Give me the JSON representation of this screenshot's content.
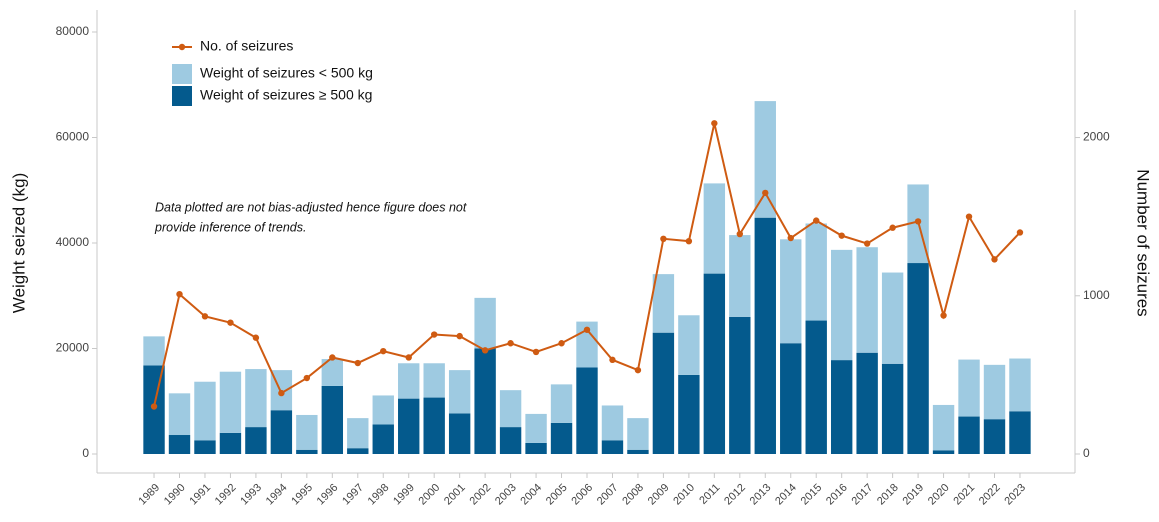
{
  "chart_data": {
    "type": "bar",
    "y_label": "Weight seized (kg)",
    "y2_label": "Number of seizures",
    "annotation": [
      "Data plotted are not bias-adjusted hence figure does not",
      "provide inference of trends."
    ],
    "categories": [
      "1989",
      "1990",
      "1991",
      "1992",
      "1993",
      "1994",
      "1995",
      "1996",
      "1997",
      "1998",
      "1999",
      "2000",
      "2001",
      "2002",
      "2003",
      "2004",
      "2005",
      "2006",
      "2007",
      "2008",
      "2009",
      "2010",
      "2011",
      "2012",
      "2013",
      "2014",
      "2015",
      "2016",
      "2017",
      "2018",
      "2019",
      "2020",
      "2021",
      "2022",
      "2023"
    ],
    "series": [
      {
        "name": "No. of seizures",
        "type": "line",
        "axis": "y2",
        "color": "#cf5b12",
        "values": [
          300,
          1010,
          870,
          830,
          735,
          385,
          480,
          610,
          575,
          650,
          610,
          755,
          745,
          655,
          700,
          645,
          700,
          785,
          595,
          530,
          1360,
          1345,
          2090,
          1390,
          1650,
          1365,
          1475,
          1380,
          1330,
          1430,
          1470,
          875,
          1500,
          1230,
          1400
        ]
      },
      {
        "name": "Weight of seizures < 500 kg",
        "type": "bar",
        "color": "#9ecae1",
        "values": [
          5500,
          7900,
          11100,
          11600,
          11000,
          7600,
          6600,
          5100,
          5700,
          5500,
          6700,
          6500,
          8200,
          9600,
          7000,
          5500,
          7300,
          8700,
          6600,
          6000,
          11100,
          11300,
          17100,
          15500,
          22100,
          19700,
          18400,
          20900,
          20000,
          17300,
          14900,
          8600,
          10800,
          10300,
          10000
        ]
      },
      {
        "name": "Weight of seizures ≥ 500 kg",
        "type": "bar",
        "color": "#045a8d",
        "values": [
          16800,
          3600,
          2600,
          4000,
          5100,
          8300,
          800,
          12900,
          1100,
          5600,
          10500,
          10700,
          7700,
          20000,
          5100,
          2100,
          5900,
          16400,
          2600,
          800,
          23000,
          15000,
          34200,
          26000,
          44800,
          21000,
          25300,
          17800,
          19200,
          17100,
          36200,
          700,
          7100,
          6600,
          8100
        ]
      }
    ],
    "ylim": [
      0,
      80000
    ],
    "yticks": [
      0,
      20000,
      40000,
      60000,
      80000
    ],
    "y2lim": [
      0,
      2667
    ],
    "y2ticks": [
      0,
      1000,
      2000
    ],
    "legend": "top-left",
    "grid": false
  }
}
